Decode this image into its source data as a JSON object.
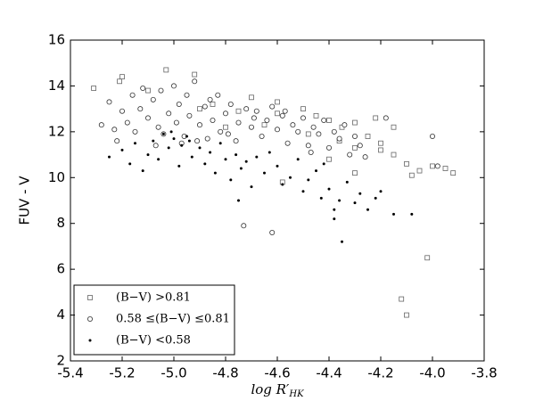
{
  "chart_data": {
    "type": "scatter",
    "y_label": "FUV - V",
    "x_label": {
      "base": "log R′",
      "sub": "HK"
    },
    "xlim": [
      -5.4,
      -3.8
    ],
    "xticks": [
      -5.4,
      -5.2,
      {
        "value": -5,
        "label": "-5.0"
      },
      -4.8,
      -4.6,
      -4.4,
      -4.2,
      {
        "value": -4,
        "label": "-4.0"
      },
      -3.8
    ],
    "ylim": [
      2,
      16
    ],
    "yticks": [
      2,
      4,
      6,
      8,
      10,
      12,
      14,
      16
    ],
    "legend": "lower left",
    "series": [
      {
        "name": "(B−V) >0.81",
        "marker": "square",
        "color": "#666666",
        "x": [
          -5.31,
          -5.2,
          -5.21,
          -5.03,
          -4.92,
          -5.1,
          -4.85,
          -4.7,
          -4.6,
          -4.5,
          -4.45,
          -4.4,
          -4.35,
          -4.3,
          -4.25,
          -4.2,
          -4.15,
          -4.1,
          -4.05,
          -4.0,
          -3.95,
          -3.92,
          -4.08,
          -4.12,
          -4.1,
          -4.02,
          -4.58,
          -4.4,
          -4.3,
          -4.22,
          -4.6,
          -4.75,
          -4.9,
          -4.2,
          -4.36,
          -4.48,
          -4.65,
          -4.8,
          -4.3,
          -4.15
        ],
        "y": [
          13.9,
          14.4,
          14.2,
          14.7,
          14.5,
          13.8,
          13.2,
          13.5,
          13.3,
          13.0,
          12.7,
          12.5,
          12.2,
          12.4,
          11.8,
          11.5,
          11.0,
          10.6,
          10.3,
          10.5,
          10.4,
          10.2,
          10.1,
          4.7,
          4.0,
          6.5,
          9.8,
          10.8,
          10.2,
          12.6,
          12.8,
          12.9,
          13.0,
          11.2,
          11.6,
          11.9,
          12.3,
          12.2,
          11.3,
          12.2
        ]
      },
      {
        "name": "0.58 ≤(B−V) ≤0.81",
        "marker": "circle",
        "color": "#333333",
        "x": [
          -5.28,
          -5.25,
          -5.22,
          -5.2,
          -5.18,
          -5.16,
          -5.15,
          -5.13,
          -5.12,
          -5.1,
          -5.08,
          -5.06,
          -5.05,
          -5.04,
          -5.02,
          -5.0,
          -4.99,
          -4.98,
          -4.96,
          -4.95,
          -4.94,
          -4.92,
          -4.9,
          -4.88,
          -4.87,
          -4.85,
          -4.83,
          -4.82,
          -4.8,
          -4.78,
          -4.76,
          -4.75,
          -4.72,
          -4.7,
          -4.68,
          -4.66,
          -4.64,
          -4.62,
          -4.6,
          -4.58,
          -4.56,
          -4.54,
          -4.52,
          -4.5,
          -4.48,
          -4.46,
          -4.44,
          -4.42,
          -4.4,
          -4.38,
          -4.36,
          -4.34,
          -4.32,
          -4.3,
          -4.28,
          -4.26,
          -4.73,
          -4.62,
          -4.0,
          -4.18,
          -3.98,
          -5.23,
          -5.07,
          -4.97,
          -4.91,
          -4.86,
          -4.79,
          -4.69,
          -4.57,
          -4.47
        ],
        "y": [
          12.3,
          13.3,
          11.6,
          12.9,
          12.4,
          13.6,
          12.0,
          13.0,
          13.9,
          12.6,
          13.4,
          12.2,
          13.8,
          11.9,
          12.8,
          14.0,
          12.4,
          13.2,
          11.8,
          13.6,
          12.7,
          14.2,
          12.3,
          13.1,
          11.7,
          12.5,
          13.6,
          12.0,
          12.8,
          13.2,
          11.6,
          12.4,
          13.0,
          12.2,
          12.9,
          11.8,
          12.5,
          13.1,
          12.1,
          12.7,
          11.5,
          12.3,
          12.0,
          12.6,
          11.4,
          12.2,
          11.9,
          12.5,
          11.3,
          12.0,
          11.7,
          12.3,
          11.0,
          11.8,
          11.4,
          10.9,
          7.9,
          7.6,
          11.8,
          12.6,
          10.5,
          12.1,
          11.4,
          11.5,
          11.6,
          13.4,
          11.9,
          12.6,
          12.9,
          11.1
        ]
      },
      {
        "name": "(B−V) <0.58",
        "marker": "dot",
        "color": "#000000",
        "x": [
          -5.25,
          -5.2,
          -5.17,
          -5.15,
          -5.12,
          -5.1,
          -5.08,
          -5.06,
          -5.04,
          -5.02,
          -5.0,
          -4.98,
          -4.97,
          -4.95,
          -4.93,
          -4.9,
          -4.88,
          -4.86,
          -4.84,
          -4.82,
          -4.8,
          -4.78,
          -4.76,
          -4.74,
          -4.72,
          -4.7,
          -4.68,
          -4.65,
          -4.63,
          -4.6,
          -4.58,
          -4.55,
          -4.52,
          -4.5,
          -4.48,
          -4.45,
          -4.43,
          -4.42,
          -4.4,
          -4.38,
          -4.36,
          -4.33,
          -4.3,
          -4.28,
          -4.25,
          -4.22,
          -4.2,
          -4.35,
          -4.15,
          -4.08,
          -4.75,
          -4.38,
          -5.01,
          -4.94
        ],
        "y": [
          10.9,
          11.2,
          10.6,
          11.5,
          10.3,
          11.0,
          11.6,
          10.8,
          11.9,
          11.3,
          11.7,
          10.5,
          11.4,
          11.8,
          10.9,
          11.3,
          10.6,
          11.1,
          10.2,
          11.5,
          10.8,
          9.9,
          11.0,
          10.4,
          10.7,
          9.6,
          10.9,
          10.2,
          11.1,
          10.5,
          9.7,
          10.0,
          10.8,
          9.4,
          9.9,
          10.3,
          9.1,
          10.6,
          9.5,
          8.2,
          9.0,
          9.8,
          8.9,
          9.3,
          8.6,
          9.1,
          9.4,
          7.2,
          8.4,
          8.4,
          9.0,
          8.6,
          12.0,
          11.6
        ]
      }
    ]
  }
}
